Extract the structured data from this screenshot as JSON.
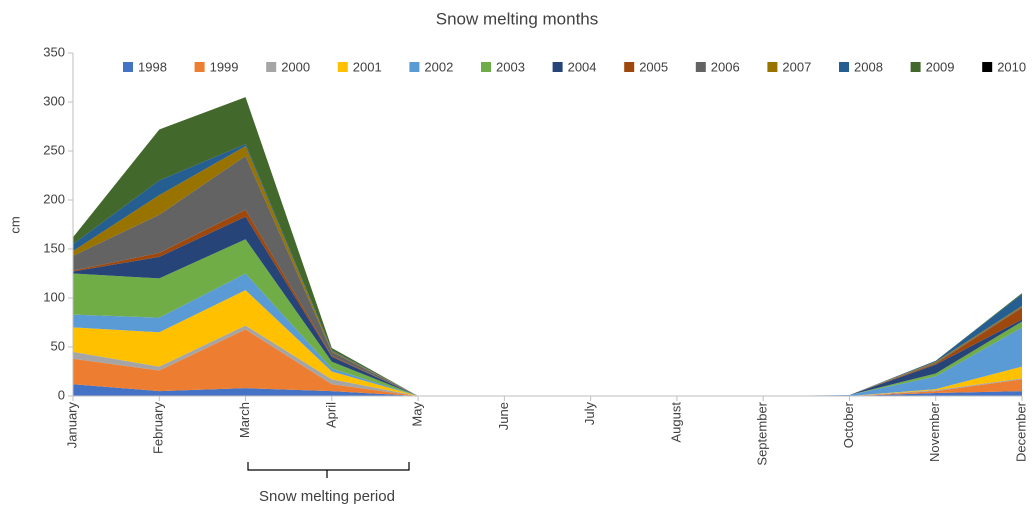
{
  "chart_data": {
    "type": "stacked_area",
    "title": "Snow melting months",
    "y_label": "cm",
    "annotation": "Snow melting period",
    "categories": [
      "January",
      "February",
      "March",
      "April",
      "May",
      "June",
      "July",
      "August",
      "September",
      "October",
      "November",
      "December"
    ],
    "ylim": [
      0,
      350
    ],
    "yticks": [
      0,
      50,
      100,
      150,
      200,
      250,
      300,
      350
    ],
    "grid": false,
    "legend": "top",
    "series": [
      {
        "name": "1998",
        "color": "#4472c4",
        "values": [
          12,
          5,
          8,
          5,
          0,
          0,
          0,
          0,
          0,
          0,
          3,
          5
        ]
      },
      {
        "name": "1999",
        "color": "#ed7d31",
        "values": [
          26,
          21,
          60,
          7,
          0,
          0,
          0,
          0,
          0,
          0,
          2,
          12
        ]
      },
      {
        "name": "2000",
        "color": "#a5a5a5",
        "values": [
          7,
          4,
          4,
          5,
          0,
          0,
          0,
          0,
          0,
          0,
          1,
          1
        ]
      },
      {
        "name": "2001",
        "color": "#ffc000",
        "values": [
          25,
          35,
          36,
          8,
          0,
          0,
          0,
          0,
          0,
          0,
          1,
          12
        ]
      },
      {
        "name": "2002",
        "color": "#5b9bd5",
        "values": [
          13,
          15,
          17,
          3,
          0,
          0,
          0,
          0,
          0,
          1,
          13,
          40
        ]
      },
      {
        "name": "2003",
        "color": "#70ad47",
        "values": [
          42,
          40,
          35,
          7,
          0,
          0,
          0,
          0,
          0,
          0,
          3,
          6
        ]
      },
      {
        "name": "2004",
        "color": "#264478",
        "values": [
          2,
          22,
          23,
          5,
          0,
          0,
          0,
          0,
          0,
          0,
          9,
          2
        ]
      },
      {
        "name": "2005",
        "color": "#9e480e",
        "values": [
          1,
          4,
          7,
          1,
          0,
          0,
          0,
          0,
          0,
          0,
          1,
          12
        ]
      },
      {
        "name": "2006",
        "color": "#636363",
        "values": [
          15,
          39,
          55,
          4,
          0,
          0,
          0,
          0,
          0,
          0,
          1,
          1
        ]
      },
      {
        "name": "2007",
        "color": "#997300",
        "values": [
          5,
          20,
          10,
          1,
          0,
          0,
          0,
          0,
          0,
          0,
          1,
          1
        ]
      },
      {
        "name": "2008",
        "color": "#255e91",
        "values": [
          7,
          15,
          2,
          1,
          0,
          0,
          0,
          0,
          0,
          0,
          1,
          12
        ]
      },
      {
        "name": "2009",
        "color": "#43682b",
        "values": [
          7,
          52,
          48,
          2,
          0,
          0,
          0,
          0,
          0,
          0,
          0,
          1
        ]
      },
      {
        "name": "2010",
        "color": "#000000",
        "values": [
          0,
          0,
          0,
          0,
          0,
          0,
          0,
          0,
          0,
          0,
          0,
          0
        ]
      }
    ]
  }
}
